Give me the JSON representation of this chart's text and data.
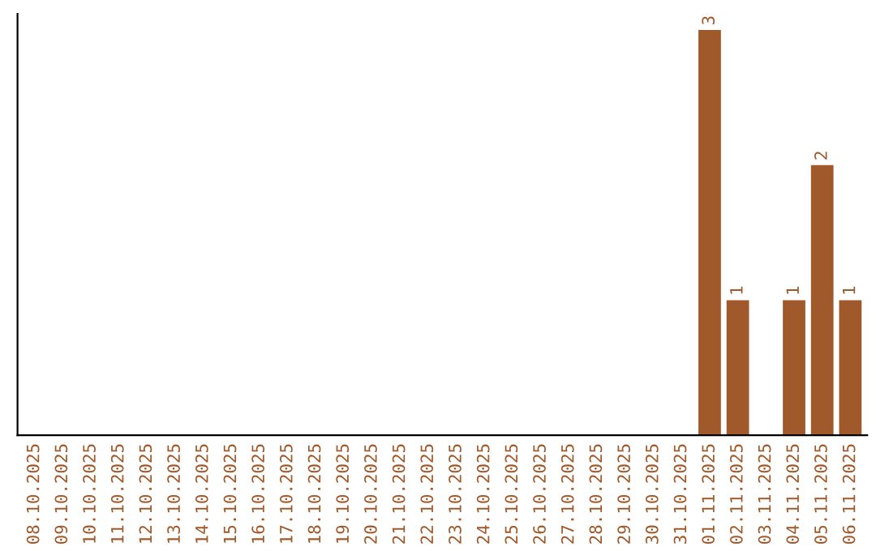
{
  "chart_data": {
    "type": "bar",
    "categories": [
      "08.10.2025",
      "09.10.2025",
      "10.10.2025",
      "11.10.2025",
      "12.10.2025",
      "13.10.2025",
      "14.10.2025",
      "15.10.2025",
      "16.10.2025",
      "17.10.2025",
      "18.10.2025",
      "19.10.2025",
      "20.10.2025",
      "21.10.2025",
      "22.10.2025",
      "23.10.2025",
      "24.10.2025",
      "25.10.2025",
      "26.10.2025",
      "27.10.2025",
      "28.10.2025",
      "29.10.2025",
      "30.10.2025",
      "31.10.2025",
      "01.11.2025",
      "02.11.2025",
      "03.11.2025",
      "04.11.2025",
      "05.11.2025",
      "06.11.2025"
    ],
    "values": [
      null,
      null,
      null,
      null,
      null,
      null,
      null,
      null,
      null,
      null,
      null,
      null,
      null,
      null,
      null,
      null,
      null,
      null,
      null,
      null,
      null,
      null,
      null,
      null,
      3,
      1,
      null,
      1,
      2,
      1
    ],
    "data_labels": true,
    "color": "#a0592a",
    "tick_labels": "x",
    "grid": false,
    "legend": false
  }
}
